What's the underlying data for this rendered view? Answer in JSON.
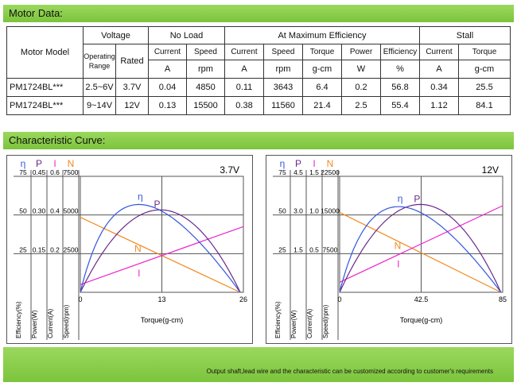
{
  "section1_title": "Motor Data:",
  "section2_title": "Characteristic Curve:",
  "footer_note": "Output shaft,lead wire and the characteristic can be customized according to customer's requirements",
  "table": {
    "motor_model": "Motor Model",
    "voltage": "Voltage",
    "operating_range": "Operating Range",
    "rated": "Rated",
    "no_load": "No Load",
    "at_max_eff": "At Maximum Efficiency",
    "stall": "Stall",
    "current": "Current",
    "speed": "Speed",
    "torque": "Torque",
    "power": "Power",
    "efficiency": "Efficiency",
    "unit_a": "A",
    "unit_rpm": "rpm",
    "unit_gcm": "g-cm",
    "unit_w": "W",
    "unit_pct": "%",
    "rows": [
      [
        "PM1724BL***",
        "2.5~6V",
        "3.7V",
        "0.04",
        "4850",
        "0.11",
        "3643",
        "6.4",
        "0.2",
        "56.8",
        "0.34",
        "25.5"
      ],
      [
        "PM1724BL***",
        "9~14V",
        "12V",
        "0.13",
        "15500",
        "0.38",
        "11560",
        "21.4",
        "2.5",
        "55.4",
        "1.12",
        "84.1"
      ]
    ]
  },
  "colors": {
    "eta": "#3355dd",
    "P": "#6a2a8a",
    "I": "#ee22cc",
    "N": "#f08a20",
    "band": "#8ad04a"
  },
  "chart_data": [
    {
      "type": "line",
      "title": "3.7V",
      "xlabel": "Torque(g-cm)",
      "axis_labels": [
        "Efficiency(%)",
        "Power(W)",
        "Current(A)",
        "Speed(rpm)"
      ],
      "axis_symbols": [
        "η",
        "P",
        "I",
        "N"
      ],
      "x_ticks": [
        "0",
        "13",
        "26"
      ],
      "x_range": [
        0,
        26
      ],
      "eff_ticks": [
        "75",
        "50",
        "25"
      ],
      "power_ticks": [
        "0.45",
        "0.30",
        "0.15"
      ],
      "current_ticks": [
        "0.6",
        "0.4",
        "0.2"
      ],
      "speed_ticks": [
        "7500",
        "5000",
        "2500"
      ],
      "scales": {
        "eff": 75,
        "power": 0.45,
        "current": 0.6,
        "speed": 7500
      },
      "series": [
        {
          "name": "η",
          "curve": "efficiency",
          "peak_x": 6.4,
          "peak_y": 56.8
        },
        {
          "name": "P",
          "curve": "power",
          "peak_x": 12.75,
          "peak_y": 0.32
        },
        {
          "name": "I",
          "curve": "current",
          "x": [
            0,
            26
          ],
          "y": [
            0.04,
            0.34
          ]
        },
        {
          "name": "N",
          "curve": "speed",
          "x": [
            0,
            25.5
          ],
          "y": [
            4850,
            0
          ]
        }
      ]
    },
    {
      "type": "line",
      "title": "12V",
      "xlabel": "Torque(g-cm)",
      "axis_labels": [
        "Efficiency(%)",
        "Power(W)",
        "Current(A)",
        "Speed(rpm)"
      ],
      "axis_symbols": [
        "η",
        "P",
        "I",
        "N"
      ],
      "x_ticks": [
        "0",
        "42.5",
        "85"
      ],
      "x_range": [
        0,
        85
      ],
      "eff_ticks": [
        "75",
        "50",
        "25"
      ],
      "power_ticks": [
        "4.5",
        "3.0",
        "1.5"
      ],
      "current_ticks": [
        "1.5",
        "1.0",
        "0.5"
      ],
      "speed_ticks": [
        "22500",
        "15000",
        "7500"
      ],
      "scales": {
        "eff": 75,
        "power": 4.5,
        "current": 1.5,
        "speed": 22500
      },
      "series": [
        {
          "name": "η",
          "curve": "efficiency",
          "peak_x": 21.4,
          "peak_y": 55.4
        },
        {
          "name": "P",
          "curve": "power",
          "peak_x": 42.05,
          "peak_y": 3.41
        },
        {
          "name": "I",
          "curve": "current",
          "x": [
            0,
            85
          ],
          "y": [
            0.13,
            1.12
          ]
        },
        {
          "name": "N",
          "curve": "speed",
          "x": [
            0,
            84.1
          ],
          "y": [
            15500,
            0
          ]
        }
      ]
    }
  ]
}
